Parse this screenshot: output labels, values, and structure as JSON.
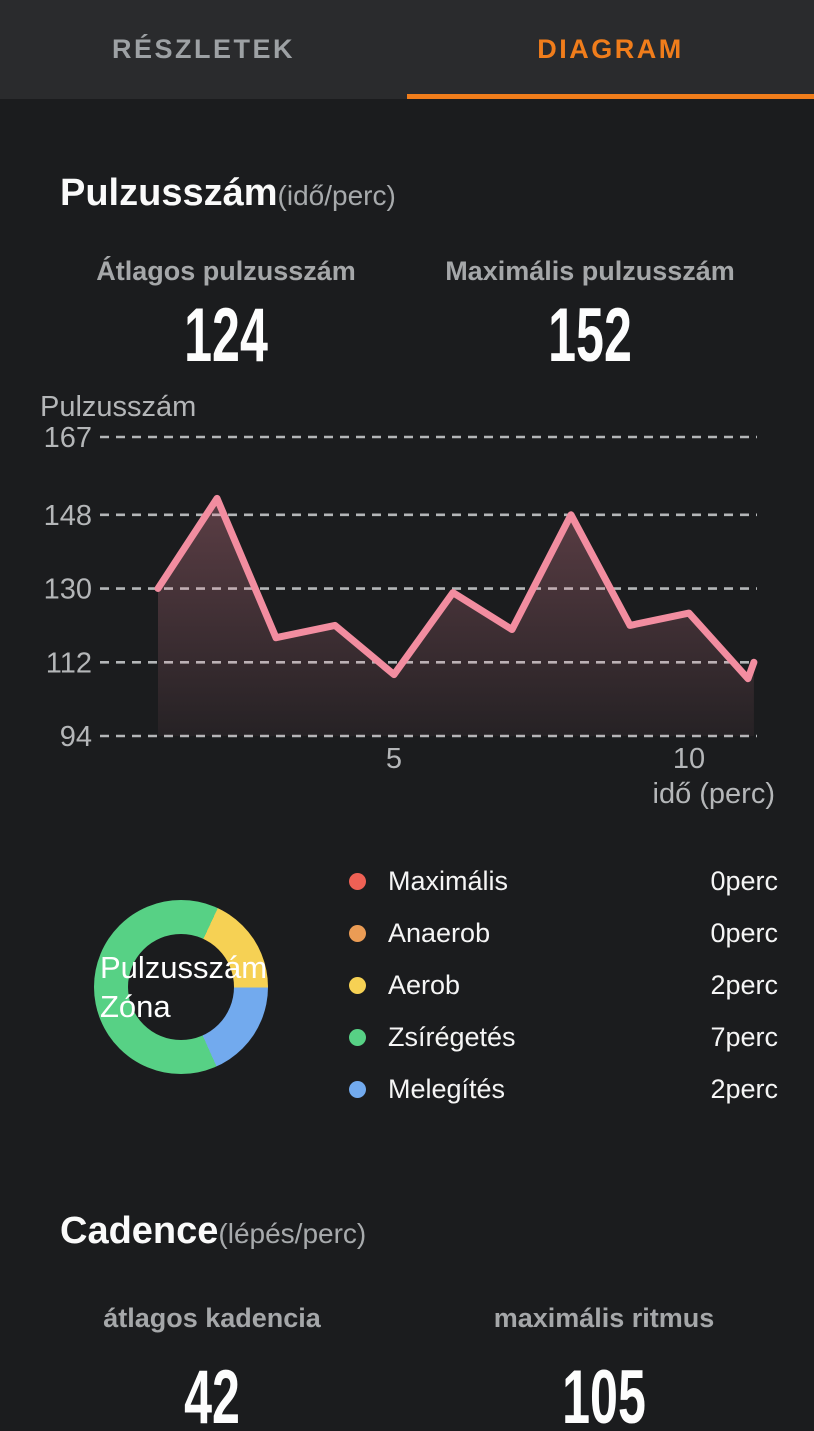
{
  "tabs": {
    "details_label": "RÉSZLETEK",
    "diagram_label": "DIAGRAM"
  },
  "colors": {
    "accent_orange": "#f07d1b",
    "tabbar_bg": "#2a2b2d",
    "content_bg": "#1b1c1e",
    "line_pink": "#f28da0",
    "grid_gray": "#b4b6b8",
    "label_gray": "#a5a7a9"
  },
  "heart_rate": {
    "title": "Pulzusszám",
    "title_unit": "(idő/perc)",
    "avg_label": "Átlagos pulzusszám",
    "avg_value": "124",
    "max_label": "Maximális pulzusszám",
    "max_value": "152"
  },
  "chart_data": [
    {
      "type": "area",
      "title": "Pulzusszám (idő/perc)",
      "ylabel": "Pulzusszám",
      "xlabel": "idő (perc)",
      "yticks": [
        167,
        148,
        130,
        112,
        94
      ],
      "xticks": [
        5,
        10
      ],
      "ylim": [
        94,
        167
      ],
      "xlim": [
        1,
        11.1
      ],
      "x": [
        1,
        2,
        3,
        4,
        5,
        6,
        7,
        8,
        9,
        10,
        11,
        11.1
      ],
      "y": [
        130,
        152,
        118,
        121,
        109,
        129,
        120,
        148,
        121,
        124,
        108,
        112
      ],
      "line_color": "#f28da0",
      "grid": "dashed-horizontal"
    },
    {
      "type": "pie",
      "title": "Pulzusszám Zóna",
      "labels": [
        "Maximális",
        "Anaerob",
        "Aerob",
        "Zsírégetés",
        "Melegítés"
      ],
      "values_minutes": [
        0,
        0,
        2,
        7,
        2
      ],
      "colors": [
        "#ef6155",
        "#eb9c55",
        "#f6d154",
        "#57d185",
        "#72aaee"
      ],
      "legend_position": "right"
    }
  ],
  "zone_donut": {
    "center_line1": "Pulzusszám",
    "center_line2": "Zóna",
    "items": [
      {
        "label": "Maximális",
        "value": "0perc",
        "minutes": 0,
        "color": "#ef6155"
      },
      {
        "label": "Anaerob",
        "value": "0perc",
        "minutes": 0,
        "color": "#eb9c55"
      },
      {
        "label": "Aerob",
        "value": "2perc",
        "minutes": 2,
        "color": "#f6d154"
      },
      {
        "label": "Zsírégetés",
        "value": "7perc",
        "minutes": 7,
        "color": "#57d185"
      },
      {
        "label": "Melegítés",
        "value": "2perc",
        "minutes": 2,
        "color": "#72aaee"
      }
    ]
  },
  "cadence": {
    "title": "Cadence",
    "title_unit": "(lépés/perc)",
    "avg_label": "átlagos kadencia",
    "avg_value": "42",
    "max_label": "maximális ritmus",
    "max_value": "105"
  }
}
